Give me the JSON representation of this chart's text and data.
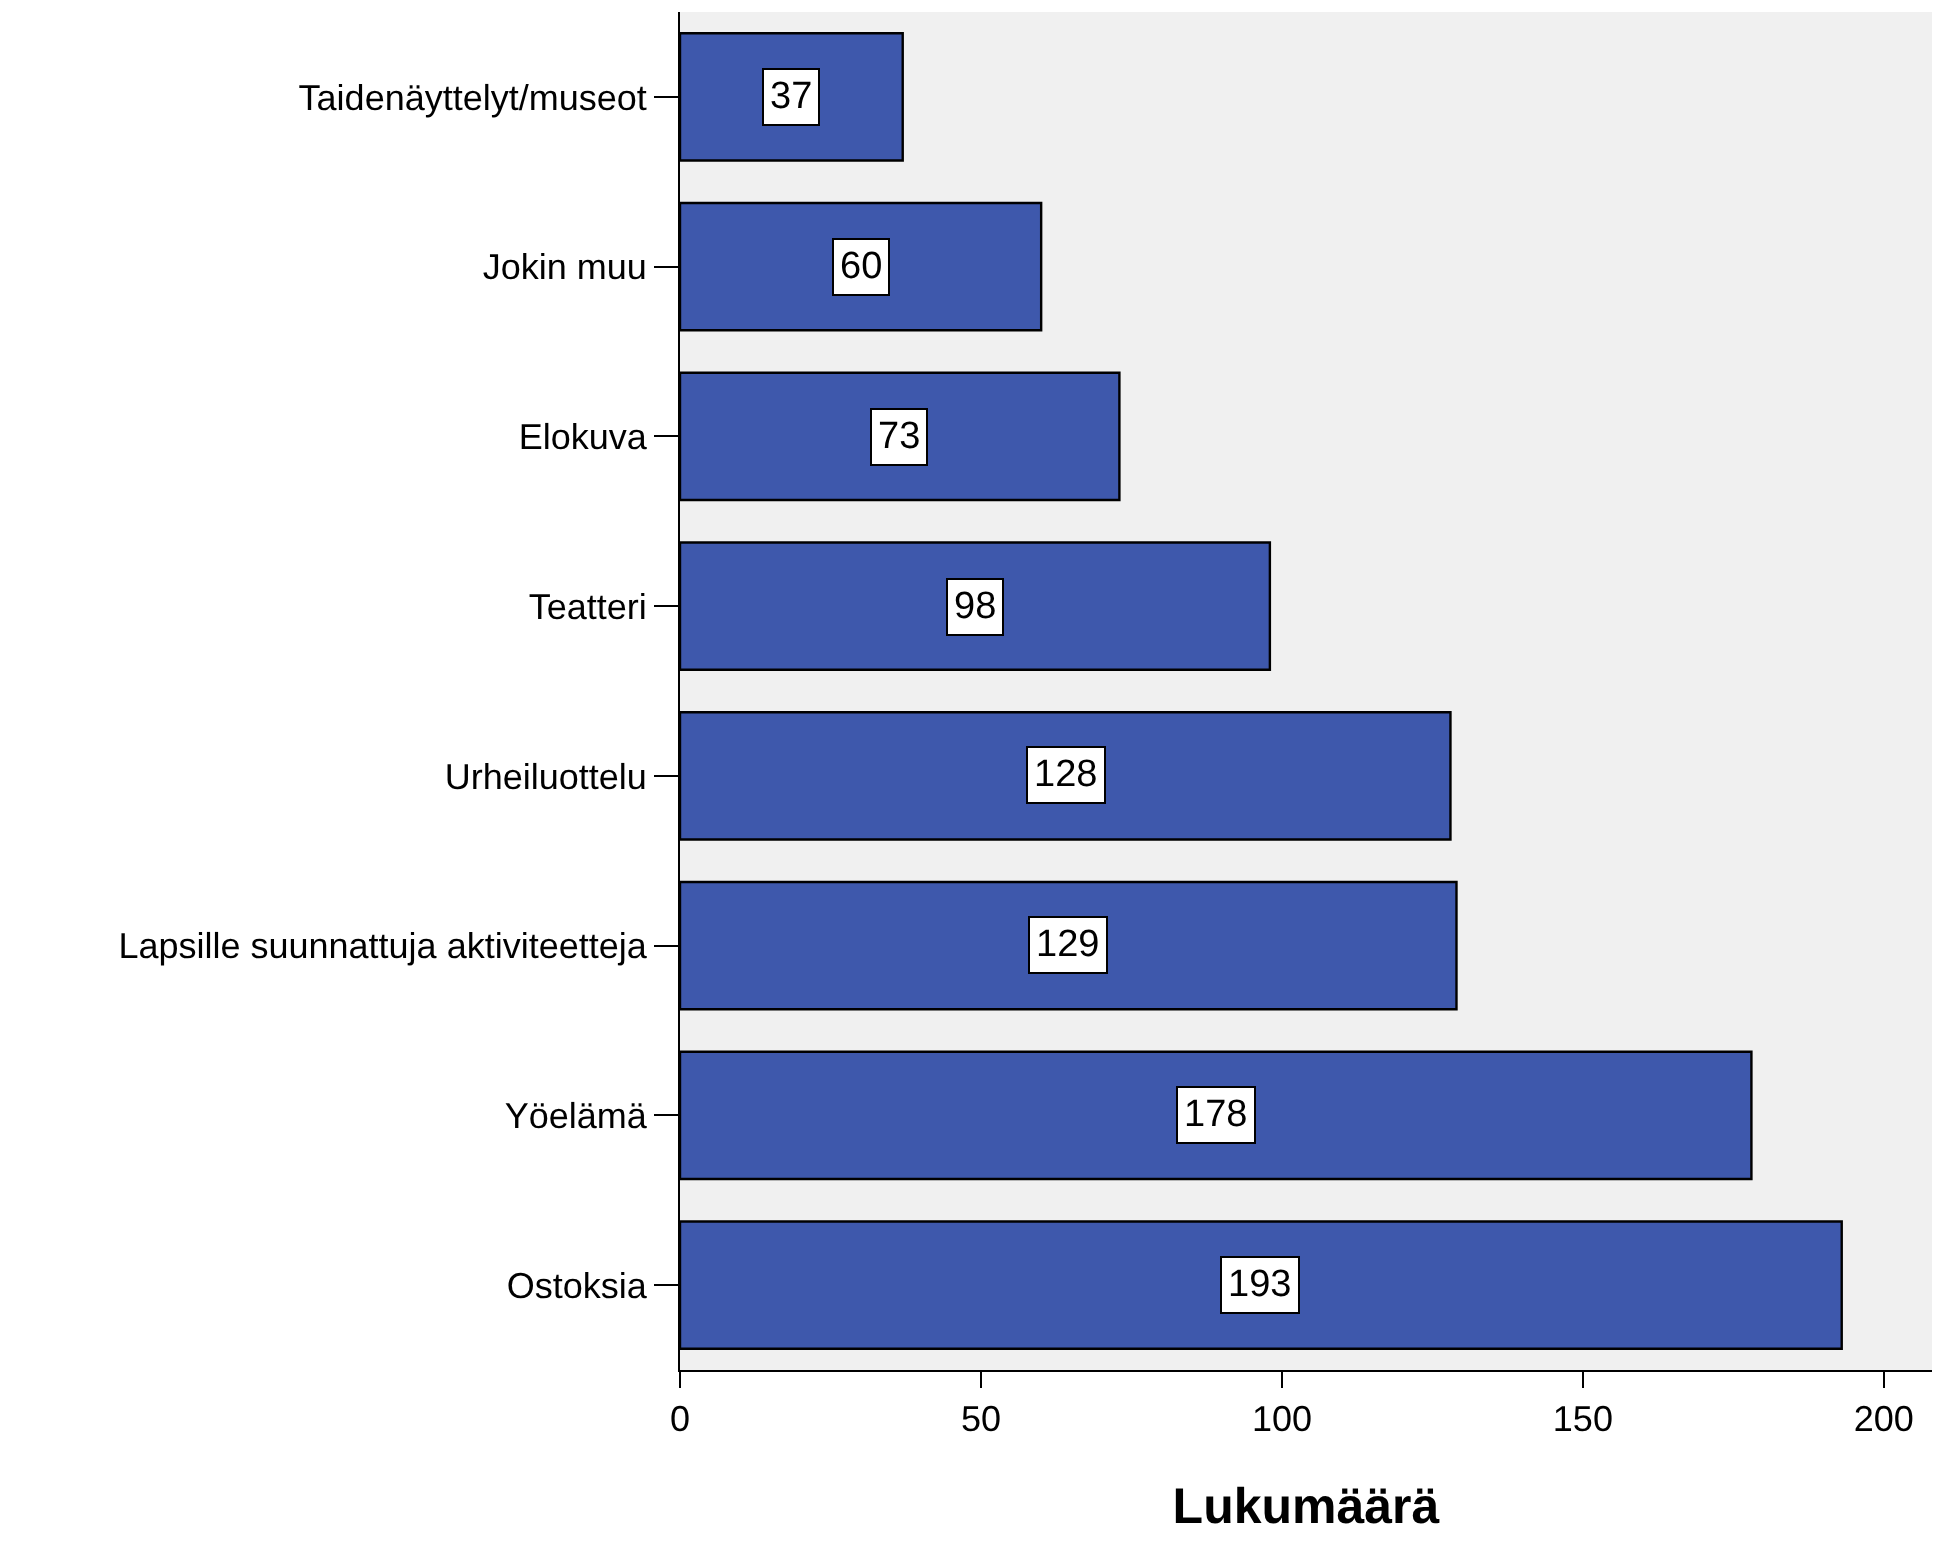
{
  "chart_data": {
    "type": "bar",
    "orientation": "horizontal",
    "xlabel": "Lukumäärä",
    "categories": [
      "Taidenäyttelyt/museot",
      "Jokin muu",
      "Elokuva",
      "Teatteri",
      "Urheiluottelu",
      "Lapsille suunnattuja aktiviteetteja",
      "Yöelämä",
      "Ostoksia"
    ],
    "values": [
      37,
      60,
      73,
      98,
      128,
      129,
      178,
      193
    ],
    "color": "#3e58ac",
    "xlim": [
      0,
      208
    ],
    "xticks": [
      0,
      50,
      100,
      150,
      200
    ],
    "grid": false,
    "data_labels": true
  }
}
